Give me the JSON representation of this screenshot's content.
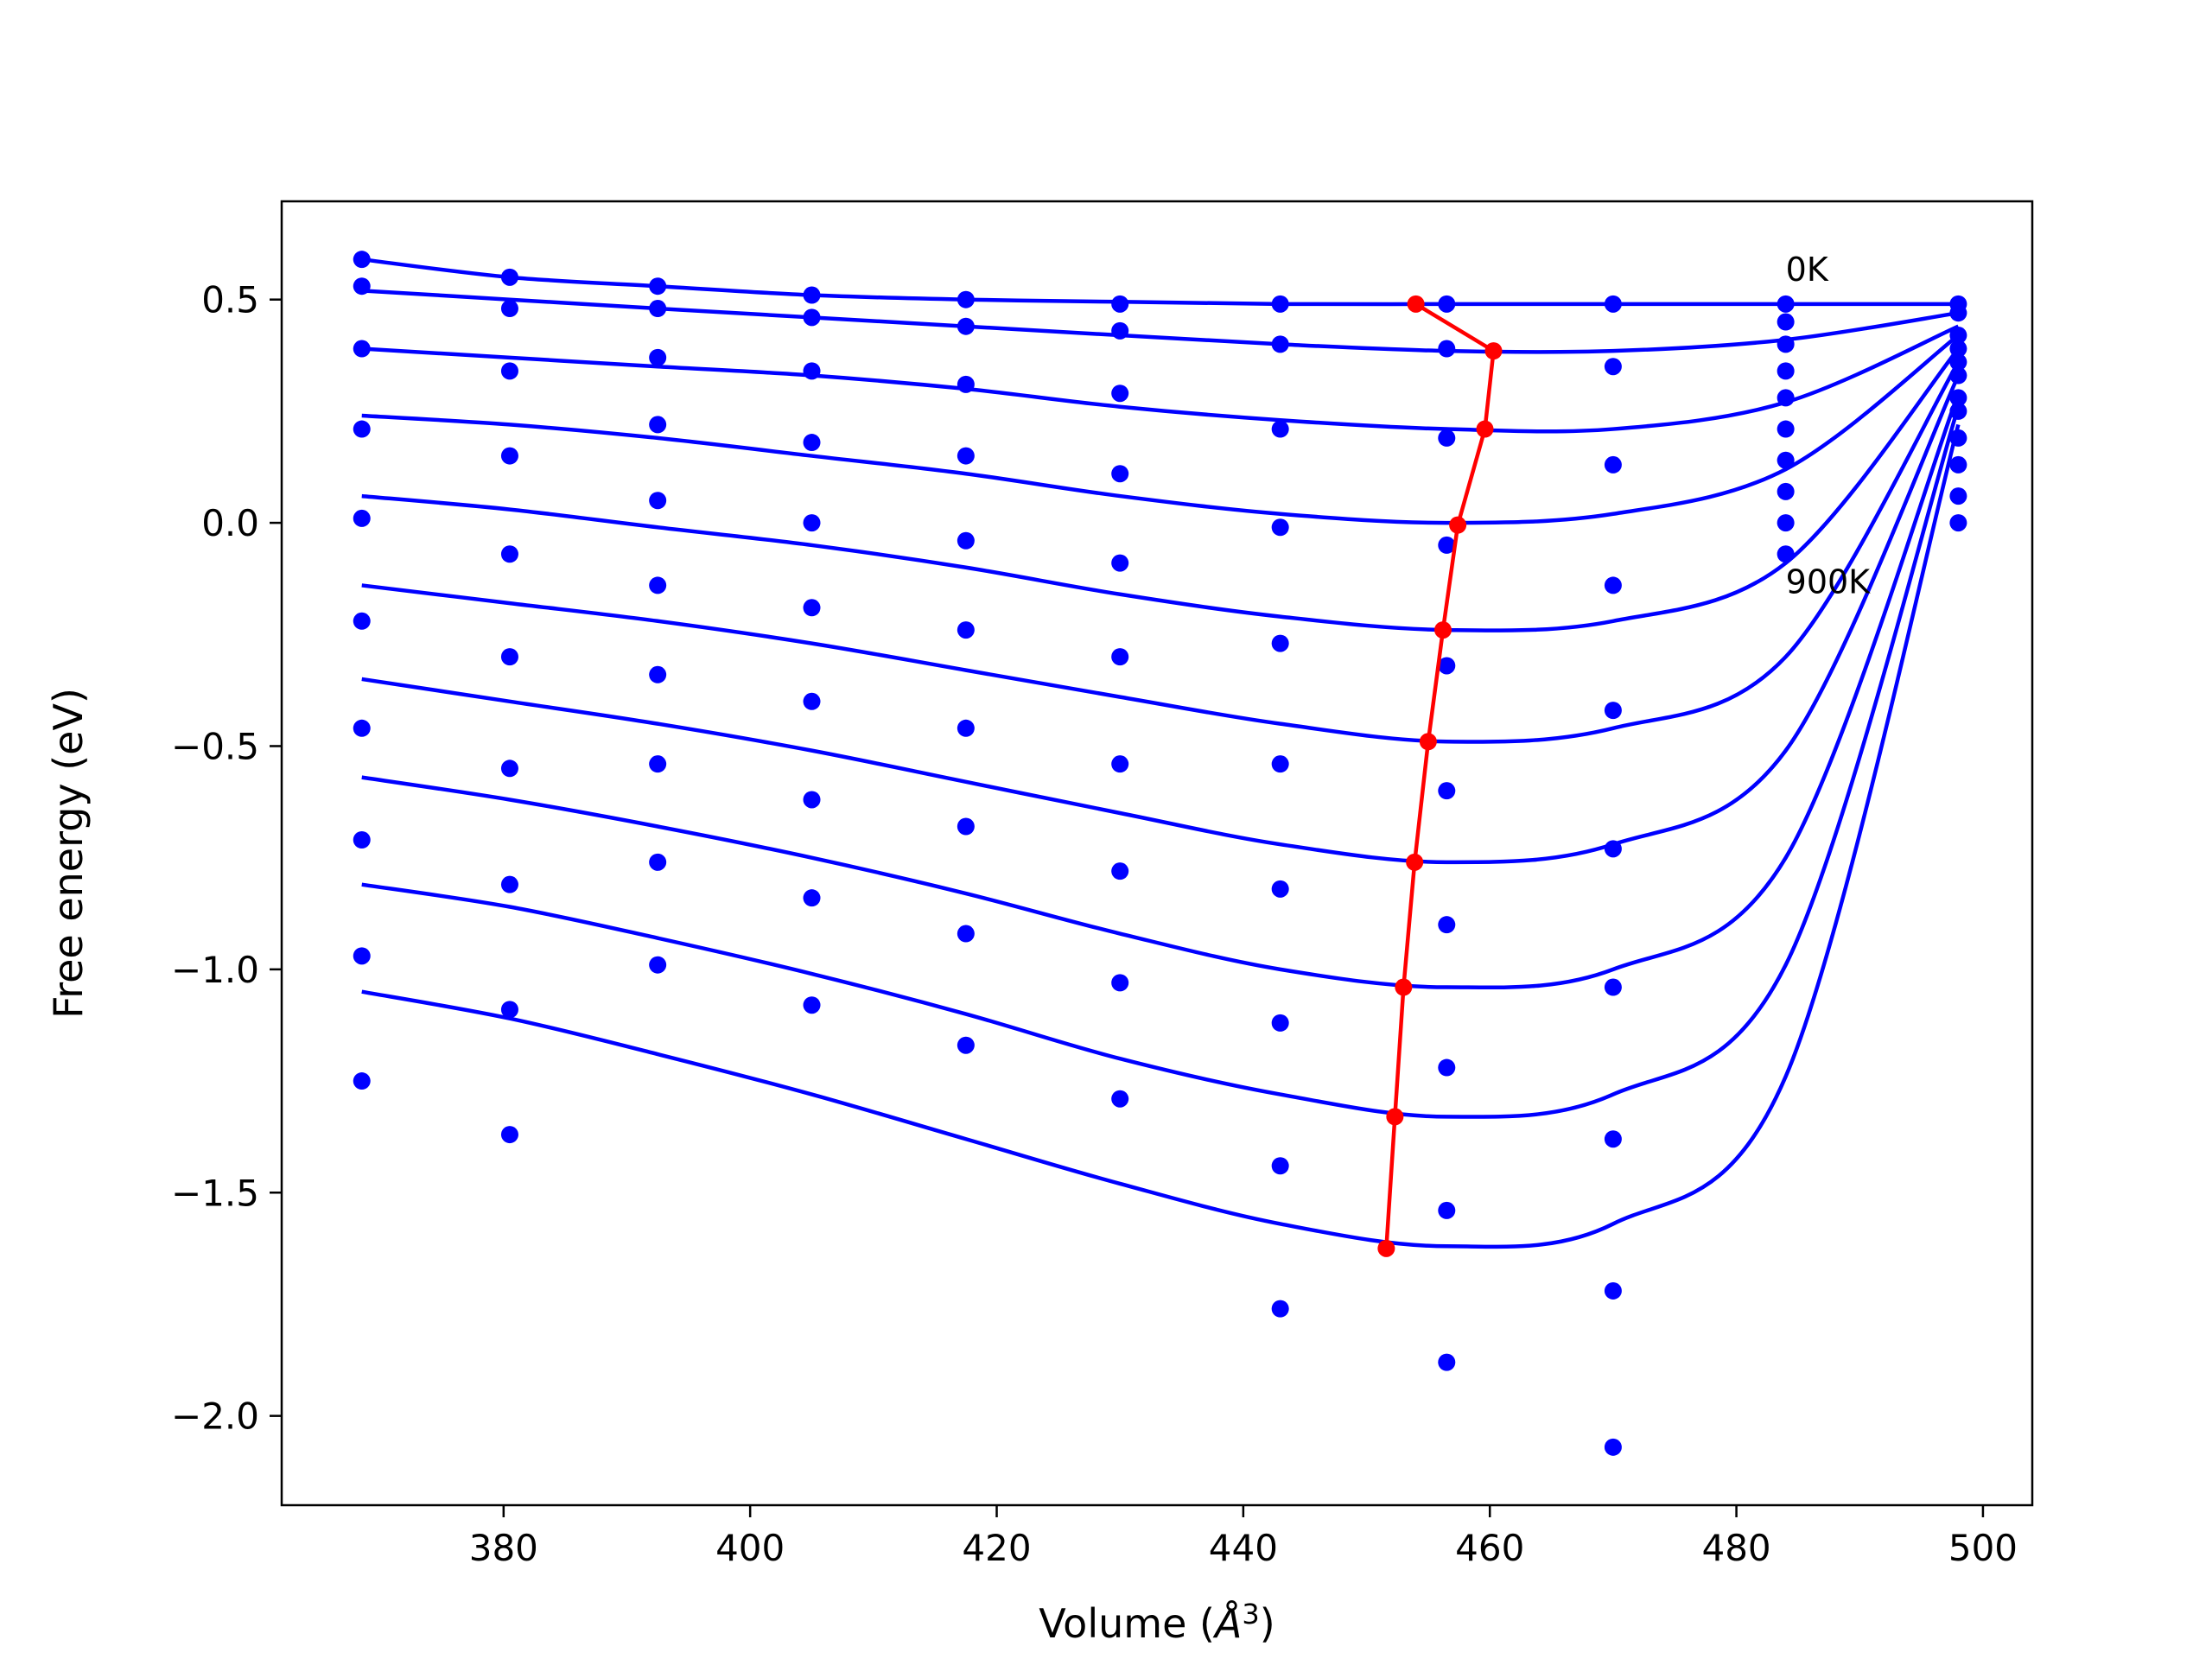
{
  "chart_data": {
    "type": "scatter",
    "xlabel": "Volume (Å³)",
    "xlabel_main": "Volume (",
    "xlabel_sym": "Å",
    "xlabel_sup": "3",
    "xlabel_close": ")",
    "ylabel": "Free energy (eV)",
    "xlim": [
      362,
      504
    ],
    "ylim": [
      -2.2,
      0.72
    ],
    "xticks": [
      380,
      400,
      420,
      440,
      460,
      480,
      500
    ],
    "yticks": [
      0.5,
      0.0,
      -0.5,
      -1.0,
      -1.5,
      -2.0
    ],
    "xtick_labels": [
      "380",
      "400",
      "420",
      "440",
      "460",
      "480",
      "500"
    ],
    "ytick_labels": [
      "0.5",
      "0.0",
      "−0.5",
      "−1.0",
      "−1.5",
      "−2.0"
    ],
    "grid": false,
    "annotations": [
      {
        "text": "0K",
        "x": 484,
        "y": 0.55
      },
      {
        "text": "900K",
        "x": 484,
        "y": -0.13
      }
    ],
    "colors": {
      "points": "#0000ff",
      "fit_curves": "#0000ff",
      "minimum_path": "#ff0000"
    },
    "volumes": [
      368.5,
      380.5,
      392.5,
      405.0,
      417.5,
      430.0,
      443.0,
      456.5,
      470.0,
      484.0,
      498.0
    ],
    "series": [
      {
        "values": [
          0.59,
          0.55,
          0.53,
          0.51,
          0.5,
          0.49,
          0.49,
          0.49,
          0.49,
          0.49,
          0.49
        ],
        "fit": [
          0.59,
          0.55,
          0.53,
          0.51,
          0.5,
          0.495,
          0.49,
          0.49,
          0.49,
          0.49,
          0.49
        ]
      },
      {
        "values": [
          0.53,
          0.48,
          0.48,
          0.46,
          0.44,
          0.43,
          0.4,
          0.39,
          0.35,
          0.45,
          0.47
        ],
        "fit": [
          0.52,
          0.5,
          0.48,
          0.46,
          0.44,
          0.42,
          0.4,
          0.385,
          0.385,
          0.41,
          0.47
        ]
      },
      {
        "values": [
          0.39,
          0.34,
          0.37,
          0.34,
          0.31,
          0.29,
          0.21,
          0.19,
          0.13,
          0.4,
          0.45
        ],
        "fit": [
          0.39,
          0.37,
          0.35,
          0.33,
          0.3,
          0.26,
          0.23,
          0.21,
          0.21,
          0.27,
          0.44
        ]
      },
      {
        "values": [
          0.21,
          0.15,
          0.22,
          0.18,
          0.15,
          0.11,
          -0.01,
          -0.05,
          -0.14,
          0.34,
          0.42
        ],
        "fit": [
          0.24,
          0.22,
          0.19,
          0.15,
          0.11,
          0.06,
          0.02,
          0.0,
          0.02,
          0.12,
          0.42
        ]
      },
      {
        "values": [
          0.01,
          -0.07,
          0.05,
          0.0,
          -0.04,
          -0.09,
          -0.27,
          -0.32,
          -0.42,
          0.28,
          0.39
        ],
        "fit": [
          0.06,
          0.03,
          -0.01,
          -0.05,
          -0.1,
          -0.16,
          -0.21,
          -0.24,
          -0.22,
          -0.09,
          0.39
        ]
      },
      {
        "values": [
          -0.22,
          -0.3,
          -0.14,
          -0.19,
          -0.24,
          -0.3,
          -0.54,
          -0.6,
          -0.73,
          0.21,
          0.36
        ],
        "fit": [
          -0.14,
          -0.18,
          -0.22,
          -0.27,
          -0.33,
          -0.39,
          -0.45,
          -0.49,
          -0.46,
          -0.3,
          0.36
        ]
      },
      {
        "values": [
          -0.46,
          -0.55,
          -0.34,
          -0.4,
          -0.46,
          -0.54,
          -0.82,
          -0.9,
          -1.04,
          0.14,
          0.33
        ],
        "fit": [
          -0.35,
          -0.4,
          -0.45,
          -0.51,
          -0.58,
          -0.65,
          -0.72,
          -0.76,
          -0.72,
          -0.51,
          0.33
        ]
      },
      {
        "values": [
          -0.71,
          -0.81,
          -0.54,
          -0.62,
          -0.68,
          -0.78,
          -1.12,
          -1.22,
          -1.38,
          0.07,
          0.29
        ],
        "fit": [
          -0.57,
          -0.62,
          -0.68,
          -0.75,
          -0.83,
          -0.92,
          -1.0,
          -1.04,
          -1.0,
          -0.75,
          0.29
        ]
      },
      {
        "values": [
          -0.97,
          -1.09,
          -0.76,
          -0.84,
          -0.92,
          -1.03,
          -1.44,
          -1.54,
          -1.72,
          0.0,
          0.26
        ],
        "fit": [
          -0.81,
          -0.86,
          -0.93,
          -1.01,
          -1.1,
          -1.2,
          -1.28,
          -1.33,
          -1.28,
          -0.99,
          0.26
        ]
      },
      {
        "values": [
          -1.25,
          -1.37,
          -0.99,
          -1.08,
          -1.17,
          -1.29,
          -1.76,
          -1.88,
          -2.07,
          -0.07,
          0.22
        ],
        "fit": [
          -1.05,
          -1.11,
          -1.19,
          -1.28,
          -1.38,
          -1.48,
          -1.57,
          -1.62,
          -1.57,
          -1.24,
          0.22
        ]
      }
    ],
    "minimum_path": {
      "x": [
        454.0,
        460.3,
        459.6,
        457.4,
        456.2,
        455.0,
        453.9,
        453.0,
        452.3,
        451.6
      ],
      "y": [
        0.49,
        0.385,
        0.21,
        -0.005,
        -0.24,
        -0.49,
        -0.76,
        -1.04,
        -1.33,
        -1.625
      ]
    },
    "endpoint_column": {
      "x": 498.0,
      "y": [
        0.49,
        0.47,
        0.42,
        0.39,
        0.36,
        0.33,
        0.28,
        0.25,
        0.19,
        0.13,
        0.06,
        0.0
      ]
    }
  }
}
